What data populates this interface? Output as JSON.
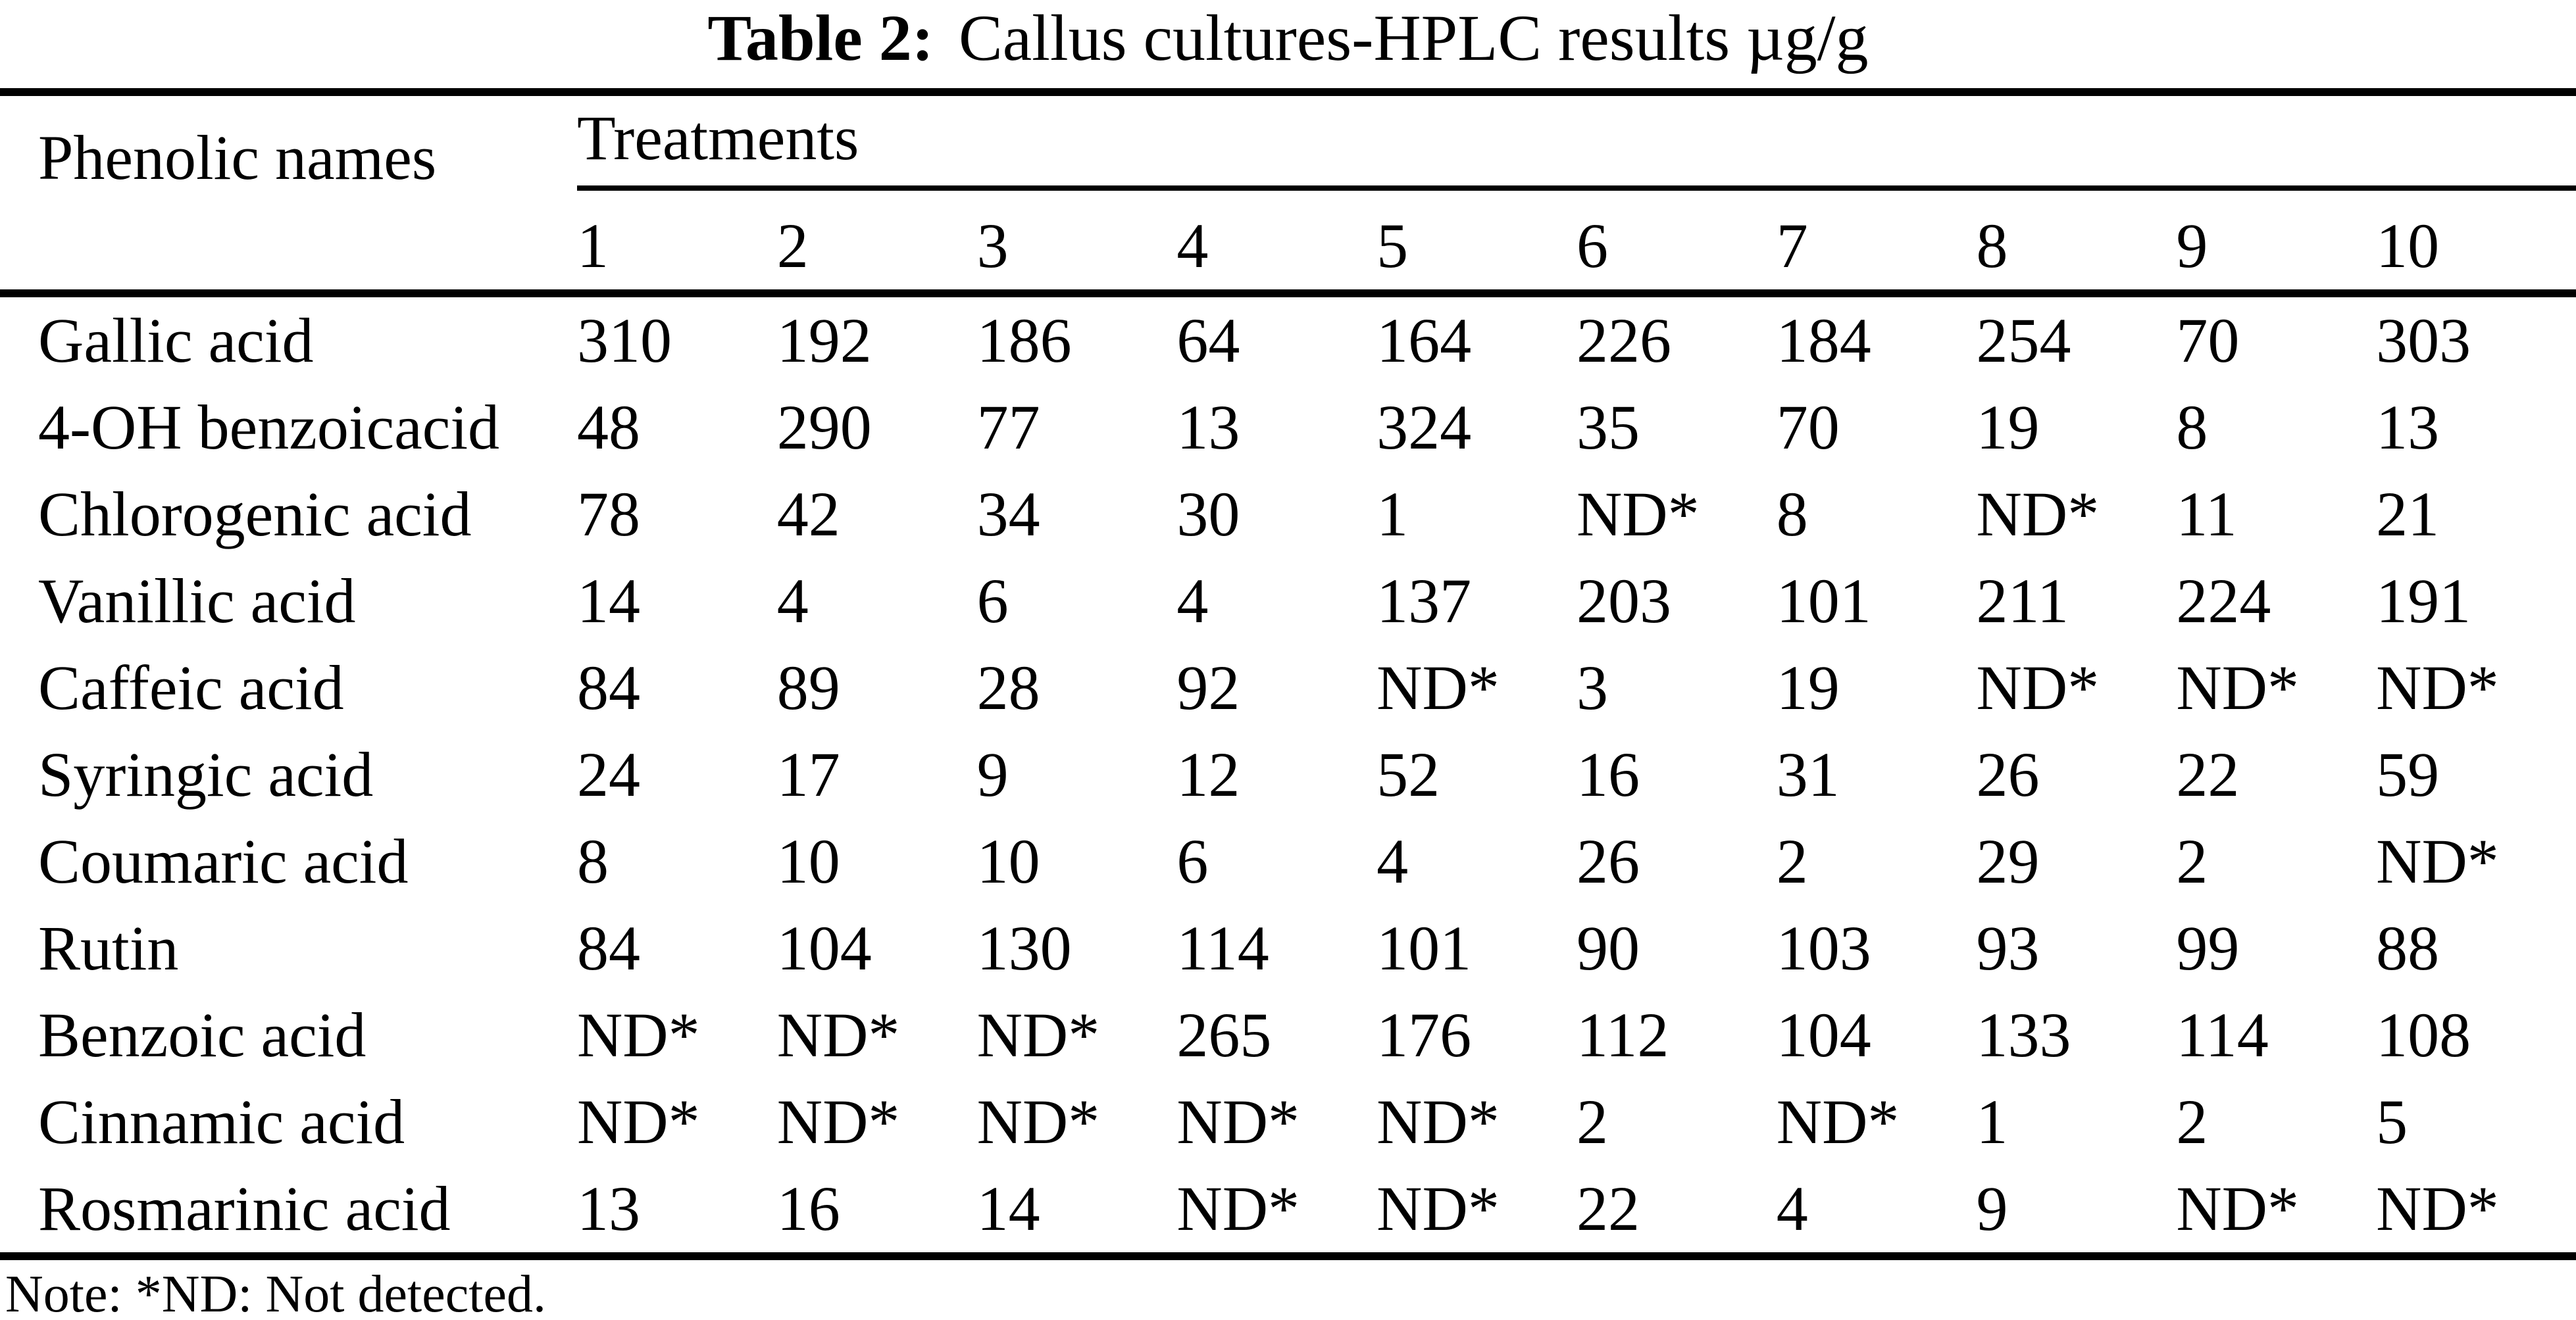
{
  "page": {
    "background": "#ffffff",
    "text_color": "#000000"
  },
  "title": {
    "label": "Table 2:",
    "text": "Callus cultures-HPLC results µg/g"
  },
  "table": {
    "corner_header": "Phenolic names",
    "span_header": "Treatments",
    "treatment_columns": [
      "1",
      "2",
      "3",
      "4",
      "5",
      "6",
      "7",
      "8",
      "9",
      "10"
    ],
    "rows": [
      {
        "name": "Gallic acid",
        "values": [
          "310",
          "192",
          "186",
          "64",
          "164",
          "226",
          "184",
          "254",
          "70",
          "303"
        ]
      },
      {
        "name": "4-OH benzoicacid",
        "values": [
          "48",
          "290",
          "77",
          "13",
          "324",
          "35",
          "70",
          "19",
          "8",
          "13"
        ]
      },
      {
        "name": "Chlorogenic acid",
        "values": [
          "78",
          "42",
          "34",
          "30",
          "1",
          "ND*",
          "8",
          "ND*",
          "11",
          "21"
        ]
      },
      {
        "name": "Vanillic acid",
        "values": [
          "14",
          "4",
          "6",
          "4",
          "137",
          "203",
          "101",
          "211",
          "224",
          "191"
        ]
      },
      {
        "name": "Caffeic acid",
        "values": [
          "84",
          "89",
          "28",
          "92",
          "ND*",
          "3",
          "19",
          "ND*",
          "ND*",
          "ND*"
        ]
      },
      {
        "name": "Syringic acid",
        "values": [
          "24",
          "17",
          "9",
          "12",
          "52",
          "16",
          "31",
          "26",
          "22",
          "59"
        ]
      },
      {
        "name": "Coumaric acid",
        "values": [
          "8",
          "10",
          "10",
          "6",
          "4",
          "26",
          "2",
          "29",
          "2",
          "ND*"
        ]
      },
      {
        "name": "Rutin",
        "values": [
          "84",
          "104",
          "130",
          "114",
          "101",
          "90",
          "103",
          "93",
          "99",
          "88"
        ]
      },
      {
        "name": "Benzoic acid",
        "values": [
          "ND*",
          "ND*",
          "ND*",
          "265",
          "176",
          "112",
          "104",
          "133",
          "114",
          "108"
        ]
      },
      {
        "name": "Cinnamic acid",
        "values": [
          "ND*",
          "ND*",
          "ND*",
          "ND*",
          "ND*",
          "2",
          "ND*",
          "1",
          "2",
          "5"
        ]
      },
      {
        "name": "Rosmarinic acid",
        "values": [
          "13",
          "16",
          "14",
          "ND*",
          "ND*",
          "22",
          "4",
          "9",
          "ND*",
          "ND*"
        ]
      }
    ]
  },
  "note": "Note: *ND: Not detected."
}
